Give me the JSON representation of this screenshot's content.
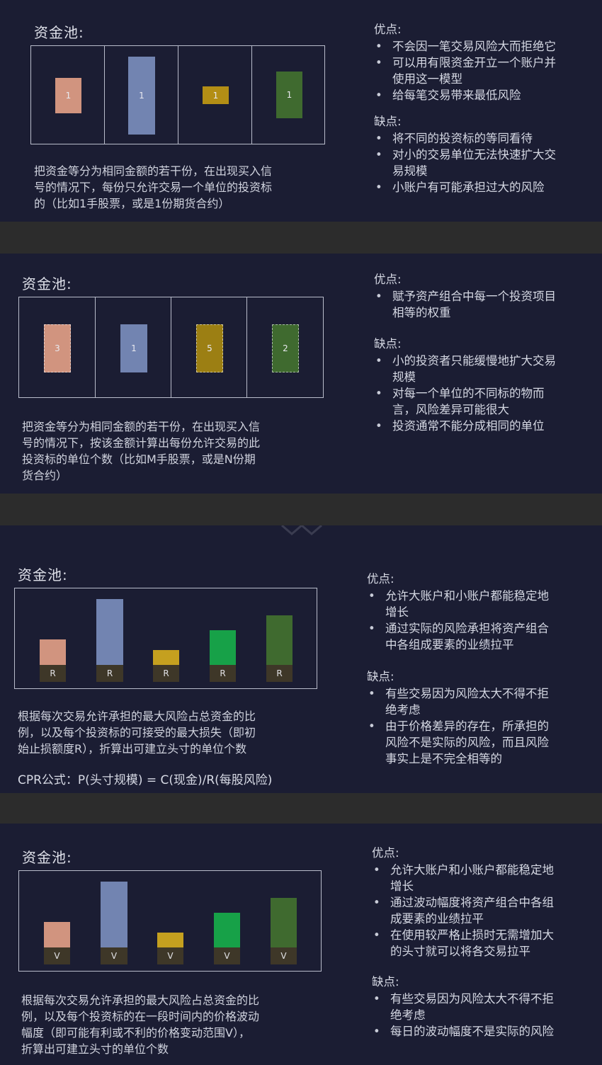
{
  "panel1": {
    "title": "资金池:",
    "blocks": [
      "1",
      "1",
      "1",
      "1"
    ],
    "desc": [
      "把资金等分为相同金额的若干份，在出现买入信",
      "号的情况下，每份只允许交易一个单位的投资标",
      "的（比如1手股票，或是1份期货合约）"
    ],
    "pros_title": "优点:",
    "pros": [
      [
        "不会因一笔交易风险大而拒绝它"
      ],
      [
        "可以用有限资金开立一个账户并",
        "使用这一模型"
      ],
      [
        "给每笔交易带来最低风险"
      ]
    ],
    "cons_title": "缺点:",
    "cons": [
      [
        "将不同的投资标的等同看待"
      ],
      [
        "对小的交易单位无法快速扩大交",
        "易规模"
      ],
      [
        "小账户有可能承担过大的风险"
      ]
    ]
  },
  "panel2": {
    "title": "资金池:",
    "blocks": [
      "3",
      "1",
      "5",
      "2"
    ],
    "desc": [
      "把资金等分为相同金额的若干份，在出现买入信",
      "号的情况下，按该金额计算出每份允许交易的此",
      "投资标的单位个数（比如M手股票，或是N份期",
      "货合约）"
    ],
    "pros_title": "优点:",
    "pros": [
      [
        "赋予资产组合中每一个投资项目",
        "相等的权重"
      ]
    ],
    "cons_title": "缺点:",
    "cons": [
      [
        "小的投资者只能缓慢地扩大交易",
        "规模"
      ],
      [
        "对每一个单位的不同标的物而",
        "言，风险差异可能很大"
      ],
      [
        "投资通常不能分成相同的单位"
      ]
    ]
  },
  "panel3": {
    "title": "资金池:",
    "bar_label": "R",
    "desc": [
      "根据每次交易允许承担的最大风险占总资金的比",
      "例，以及每个投资标的可接受的最大损失（即初",
      "始止损额度R），折算出可建立头寸的单位个数"
    ],
    "formula": "CPR公式：P(头寸规模) = C(现金)/R(每股风险)",
    "pros_title": "优点:",
    "pros": [
      [
        "允许大账户和小账户都能稳定地",
        "增长"
      ],
      [
        "通过实际的风险承担将资产组合",
        "中各组成要素的业绩拉平"
      ]
    ],
    "cons_title": "缺点:",
    "cons": [
      [
        "有些交易因为风险太大不得不拒",
        "绝考虑"
      ],
      [
        "由于价格差异的存在，所承担的",
        "风险不是实际的风险，而且风险",
        "事实上是不完全相等的"
      ]
    ]
  },
  "panel4": {
    "title": "资金池:",
    "bar_label": "V",
    "desc": [
      "根据每次交易允许承担的最大风险占总资金的比",
      "例，以及每个投资标的在一段时间内的价格波动",
      "幅度（即可能有利或不利的价格变动范围V），",
      "折算出可建立头寸的单位个数"
    ],
    "pros_title": "优点:",
    "pros": [
      [
        "允许大账户和小账户都能稳定地",
        "增长"
      ],
      [
        "通过波动幅度将资产组合中各组",
        "成要素的业绩拉平"
      ],
      [
        "在使用较严格止损时无需增加大",
        "的头寸就可以将各交易拉平"
      ]
    ],
    "cons_title": "缺点:",
    "cons": [
      [
        "有些交易因为风险太大不得不拒",
        "绝考虑"
      ],
      [
        "每日的波动幅度不是实际的风险"
      ]
    ]
  },
  "colors": {
    "salmon": "#d1947f",
    "blue": "#7284b1",
    "gold": "#c5a01f",
    "green": "#3f6a2f",
    "bright_green": "#17a148"
  }
}
